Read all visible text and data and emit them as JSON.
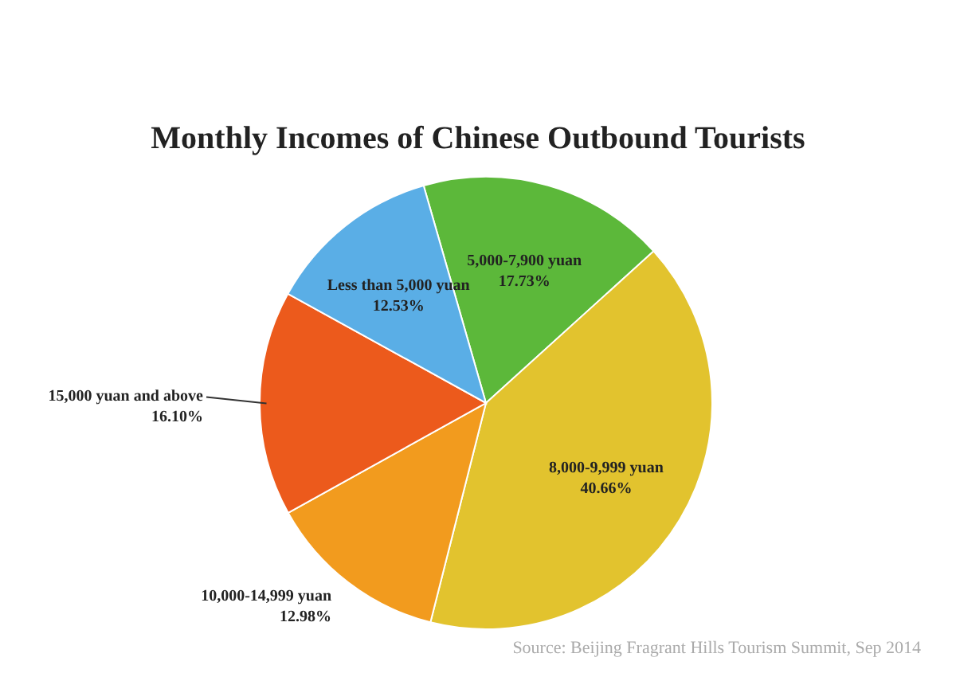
{
  "chart_data": {
    "type": "pie",
    "title": "Monthly Incomes of Chinese Outbound Tourists",
    "categories": [
      "5,000-7,900 yuan",
      "8,000-9,999 yuan",
      "10,000-14,999 yuan",
      "15,000 yuan and above",
      "Less than 5,000 yuan"
    ],
    "values": [
      17.73,
      40.66,
      12.98,
      16.1,
      12.53
    ],
    "value_labels": [
      "17.73%",
      "40.66%",
      "12.98%",
      "16.10%",
      "12.53%"
    ],
    "colors": [
      "#5cb83a",
      "#e2c32e",
      "#f29b1e",
      "#ec5a1c",
      "#5aaee6"
    ],
    "legend": false,
    "annotations": [
      "Source: Beijing Fragrant Hills Tourism Summit, Sep 2014"
    ]
  }
}
